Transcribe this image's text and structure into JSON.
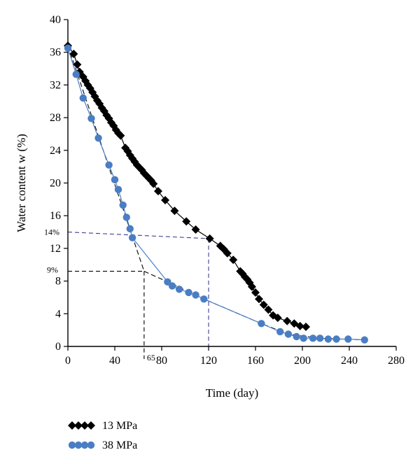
{
  "chart_data": {
    "type": "scatter",
    "xlabel": "Time (day)",
    "ylabel": "Water content w (%)",
    "xlim": [
      0,
      280
    ],
    "ylim": [
      0,
      40
    ],
    "xticks": [
      "0",
      "40",
      "80",
      "120",
      "160",
      "200",
      "240",
      "280"
    ],
    "yticks": [
      "0",
      "4",
      "8",
      "12",
      "16",
      "20",
      "24",
      "28",
      "32",
      "36",
      "40"
    ],
    "legend_position": "bottom-left",
    "series": [
      {
        "name": "13 MPa",
        "marker": "diamond",
        "color": "#000000",
        "x": [
          0,
          5,
          8,
          10,
          13,
          15,
          17,
          19,
          21,
          23,
          25,
          27,
          29,
          31,
          33,
          35,
          37,
          39,
          41,
          43,
          45,
          49,
          51,
          53,
          55,
          57,
          59,
          61,
          63,
          65,
          67,
          69,
          71,
          73,
          77,
          83,
          91,
          101,
          109,
          121,
          130,
          133,
          136,
          141,
          147,
          149,
          151,
          153,
          155,
          157,
          160,
          163,
          167,
          171,
          175,
          179,
          187,
          193,
          198,
          203
        ],
        "y": [
          36.8,
          35.8,
          34.5,
          33.6,
          33.0,
          32.5,
          32.0,
          31.6,
          31.1,
          30.6,
          30.1,
          29.7,
          29.2,
          28.8,
          28.3,
          27.9,
          27.4,
          27.0,
          26.5,
          26.1,
          25.8,
          24.3,
          23.9,
          23.4,
          23.0,
          22.6,
          22.2,
          21.9,
          21.6,
          21.2,
          20.9,
          20.6,
          20.3,
          19.9,
          19.0,
          17.9,
          16.6,
          15.3,
          14.3,
          13.2,
          12.3,
          11.9,
          11.4,
          10.6,
          9.2,
          8.9,
          8.5,
          8.2,
          7.8,
          7.3,
          6.6,
          5.8,
          5.1,
          4.5,
          3.8,
          3.5,
          3.1,
          2.8,
          2.5,
          2.4
        ]
      },
      {
        "name": "38 MPa",
        "marker": "circle",
        "color": "#4a7ec4",
        "x": [
          0,
          7,
          13,
          20,
          26,
          35,
          40,
          43,
          47,
          50,
          53,
          55,
          85,
          89,
          95,
          103,
          109,
          116,
          165,
          181,
          188,
          195,
          201,
          209,
          215,
          222,
          229,
          239,
          253
        ],
        "y": [
          36.5,
          33.3,
          30.4,
          27.9,
          25.5,
          22.2,
          20.4,
          19.2,
          17.3,
          15.8,
          14.4,
          13.3,
          7.9,
          7.4,
          7.0,
          6.6,
          6.3,
          5.8,
          2.8,
          1.8,
          1.5,
          1.2,
          1.0,
          1.0,
          1.0,
          0.9,
          0.9,
          0.9,
          0.8
        ]
      }
    ],
    "annotations": {
      "ref_14": {
        "label": "14%",
        "y": 14,
        "x_end": 120
      },
      "ref_9": {
        "label": "9%",
        "y": 9.2,
        "x_end": 65
      },
      "ref_65": {
        "label": "65",
        "x": 65
      },
      "trend_lines": [
        {
          "color": "#000000",
          "points": [
            [
              0,
              36.8
            ],
            [
              65,
              9.2
            ]
          ]
        },
        {
          "color": "#000000",
          "points": [
            [
              65,
              9.2
            ],
            [
              85,
              7.9
            ],
            [
              116,
              5.8
            ],
            [
              165,
              2.8
            ],
            [
              188,
              1.5
            ],
            [
              215,
              1.0
            ],
            [
              253,
              0.8
            ]
          ]
        }
      ]
    }
  }
}
